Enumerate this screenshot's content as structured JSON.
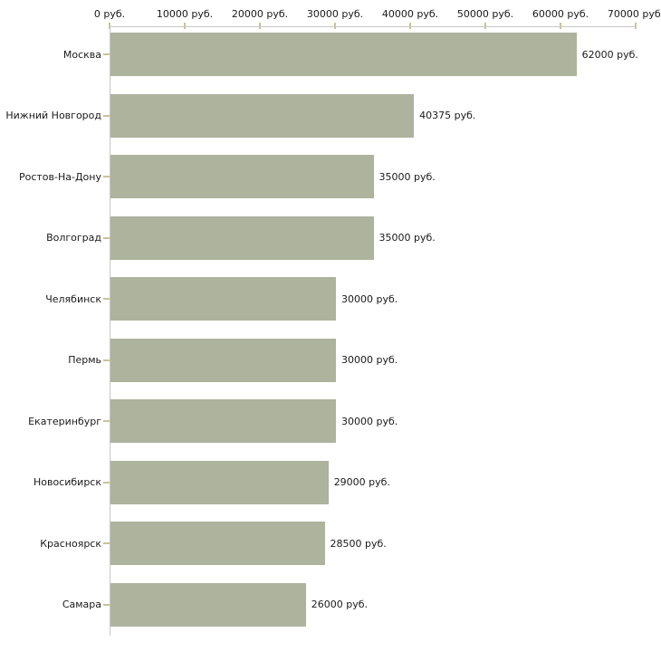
{
  "chart_data": {
    "type": "bar",
    "orientation": "horizontal",
    "title": "",
    "xlabel": "",
    "ylabel": "",
    "grid": false,
    "legend": "none",
    "unit": "руб.",
    "categories": [
      "Москва",
      "Нижний Новгород",
      "Ростов-На-Дону",
      "Волгоград",
      "Челябинск",
      "Пермь",
      "Екатеринбург",
      "Новосибирск",
      "Красноярск",
      "Самара"
    ],
    "values": [
      62000,
      40375,
      35000,
      35000,
      30000,
      30000,
      30000,
      29000,
      28500,
      26000
    ],
    "value_labels": [
      "62000 руб.",
      "40375 руб.",
      "35000 руб.",
      "35000 руб.",
      "30000 руб.",
      "30000 руб.",
      "30000 руб.",
      "29000 руб.",
      "28500 руб.",
      "26000 руб."
    ],
    "x_axis": {
      "position": "top",
      "min": 0,
      "max": 70000,
      "tick_values": [
        0,
        10000,
        20000,
        30000,
        40000,
        50000,
        60000,
        70000
      ],
      "tick_labels": [
        "0 руб.",
        "10000 руб.",
        "20000 руб.",
        "30000 руб.",
        "40000 руб.",
        "50000 руб.",
        "60000 руб.",
        "70000 руб."
      ]
    }
  },
  "colors": {
    "bar_fill": "#adb39c",
    "axis_line": "#c6c6c6",
    "tick_mark": "#c9c492",
    "text": "#1a1a1a",
    "background": "#ffffff"
  }
}
